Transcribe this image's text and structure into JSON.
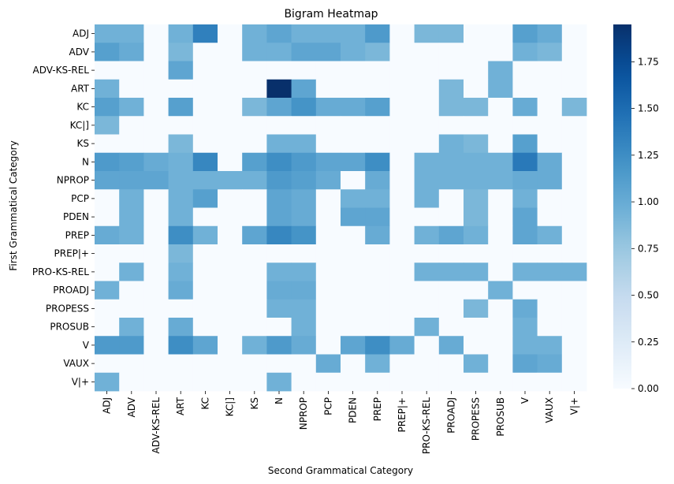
{
  "chart_data": {
    "type": "heatmap",
    "title": "Bigram Heatmap",
    "xlabel": "Second Grammatical Category",
    "ylabel": "First Grammatical Category",
    "rows": [
      "ADJ",
      "ADV",
      "ADV-KS-REL",
      "ART",
      "KC",
      "KC|]",
      "KS",
      "N",
      "NPROP",
      "PCP",
      "PDEN",
      "PREP",
      "PREP|+",
      "PRO-KS-REL",
      "PROADJ",
      "PROPESS",
      "PROSUB",
      "V",
      "VAUX",
      "V|+"
    ],
    "columns": [
      "ADJ",
      "ADV",
      "ADV-KS-REL",
      "ART",
      "KC",
      "KC|]",
      "KS",
      "N",
      "NPROP",
      "PCP",
      "PDEN",
      "PREP",
      "PREP|+",
      "PRO-KS-REL",
      "PROADJ",
      "PROPESS",
      "PROSUB",
      "V",
      "VAUX",
      "V|+"
    ],
    "values": [
      [
        0.95,
        0.95,
        0,
        0.95,
        1.35,
        0,
        0.95,
        1.05,
        0.95,
        0.95,
        0.95,
        1.15,
        0,
        0.9,
        0.9,
        0,
        0,
        1.1,
        1.0,
        0
      ],
      [
        1.1,
        1.0,
        0,
        0.9,
        0,
        0,
        0.95,
        0.95,
        1.05,
        1.05,
        0.95,
        0.9,
        0,
        0,
        0,
        0,
        0,
        0.95,
        0.9,
        0
      ],
      [
        0,
        0,
        0,
        1.05,
        0,
        0,
        0,
        0,
        0,
        0,
        0,
        0,
        0,
        0,
        0,
        0,
        0.95,
        0,
        0,
        0
      ],
      [
        0.95,
        0,
        0,
        0,
        0,
        0,
        0,
        1.95,
        1.05,
        0,
        0,
        0,
        0,
        0,
        0.9,
        0,
        0.95,
        0,
        0,
        0
      ],
      [
        1.1,
        0.95,
        0,
        1.1,
        0,
        0,
        0.9,
        1.05,
        1.2,
        1.0,
        1.0,
        1.1,
        0,
        0,
        0.9,
        0.9,
        0,
        1.0,
        0,
        0.9
      ],
      [
        0.9,
        0,
        0,
        0,
        0,
        0,
        0,
        0,
        0,
        0,
        0,
        0,
        0,
        0,
        0,
        0,
        0,
        0,
        0,
        0
      ],
      [
        0,
        0,
        0,
        0.9,
        0,
        0,
        0,
        0.95,
        0.95,
        0,
        0,
        0,
        0,
        0,
        0.95,
        0.9,
        0,
        1.1,
        0,
        0
      ],
      [
        1.15,
        1.1,
        1.0,
        0.95,
        1.3,
        0,
        1.1,
        1.25,
        1.15,
        1.05,
        1.05,
        1.25,
        0,
        0.95,
        0.95,
        0.95,
        0.95,
        1.4,
        1.0,
        0
      ],
      [
        1.05,
        1.05,
        1.05,
        0.95,
        0.95,
        0.95,
        0.95,
        1.15,
        1.1,
        1.0,
        0,
        1.0,
        0,
        0.95,
        0.95,
        0.95,
        0.95,
        1.0,
        1.0,
        0
      ],
      [
        0,
        0.95,
        0,
        0.95,
        1.1,
        0,
        0,
        1.05,
        1.0,
        0,
        0.95,
        0.95,
        0,
        0.95,
        0,
        0.9,
        0,
        0.95,
        0,
        0
      ],
      [
        0,
        0.95,
        0,
        0.95,
        0,
        0,
        0,
        1.05,
        1.0,
        0,
        1.05,
        1.05,
        0,
        0,
        0,
        0.9,
        0,
        1.05,
        0,
        0
      ],
      [
        1.0,
        0.95,
        0,
        1.25,
        0.95,
        0,
        1.05,
        1.3,
        1.2,
        0,
        0,
        1.0,
        0,
        0.95,
        1.05,
        0.95,
        0,
        1.05,
        0.95,
        0
      ],
      [
        0,
        0,
        0,
        0.9,
        0,
        0,
        0,
        0,
        0,
        0,
        0,
        0,
        0,
        0,
        0,
        0,
        0,
        0,
        0,
        0
      ],
      [
        0,
        0.95,
        0,
        0.95,
        0,
        0,
        0,
        0.95,
        0.95,
        0,
        0,
        0,
        0,
        0.95,
        0.95,
        0.95,
        0,
        0.95,
        0.95,
        0.95
      ],
      [
        0.95,
        0,
        0,
        1.0,
        0,
        0,
        0,
        1.0,
        1.0,
        0,
        0,
        0,
        0,
        0,
        0,
        0,
        0.95,
        0,
        0,
        0
      ],
      [
        0,
        0,
        0,
        0,
        0,
        0,
        0,
        0.95,
        0.95,
        0,
        0,
        0,
        0,
        0,
        0,
        0.9,
        0,
        1.0,
        0,
        0
      ],
      [
        0,
        0.95,
        0,
        1.0,
        0,
        0,
        0,
        0,
        0.95,
        0,
        0,
        0,
        0,
        0.95,
        0,
        0,
        0,
        0.95,
        0,
        0
      ],
      [
        1.15,
        1.15,
        0,
        1.25,
        1.05,
        0,
        0.95,
        1.15,
        1.0,
        0,
        1.05,
        1.25,
        1.0,
        0,
        1.0,
        0,
        0,
        0.95,
        0.95,
        0
      ],
      [
        0,
        0,
        0,
        0,
        0,
        0,
        0,
        0,
        0,
        1.0,
        0,
        0.95,
        0,
        0,
        0,
        0.95,
        0,
        1.05,
        1.0,
        0
      ],
      [
        0.95,
        0,
        0,
        0,
        0,
        0,
        0,
        0.95,
        0,
        0,
        0,
        0,
        0,
        0,
        0,
        0,
        0,
        0,
        0,
        0
      ]
    ],
    "vmin": 0,
    "vmax": 1.95,
    "colormap": "Blues",
    "colorbar_ticks": [
      "0.00",
      "0.25",
      "0.50",
      "0.75",
      "1.00",
      "1.25",
      "1.50",
      "1.75"
    ],
    "colorbar_tick_values": [
      0,
      0.25,
      0.5,
      0.75,
      1.0,
      1.25,
      1.5,
      1.75
    ],
    "grid": false,
    "legend": "colorbar-right"
  }
}
